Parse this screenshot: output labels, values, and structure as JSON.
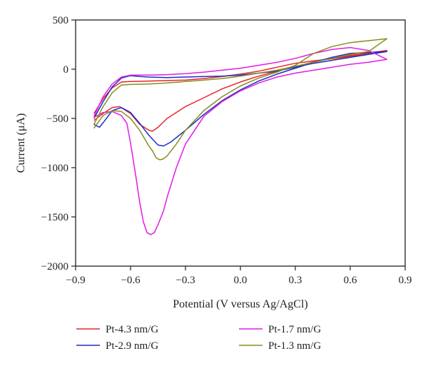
{
  "chart_data": {
    "type": "line",
    "title": "",
    "xlabel": "Potential (V versus Ag/AgCl)",
    "ylabel": "Current (μA)",
    "xlim": [
      -0.9,
      0.9
    ],
    "ylim": [
      -2000,
      500
    ],
    "xticks": [
      -0.9,
      -0.6,
      -0.3,
      0.0,
      0.3,
      0.6,
      0.9
    ],
    "xtick_labels": [
      "−0.9",
      "−0.6",
      "−0.3",
      "0.0",
      "0.3",
      "0.6",
      "0.9"
    ],
    "yticks": [
      500,
      0,
      -500,
      -1000,
      -1500,
      -2000
    ],
    "ytick_labels": [
      "500",
      "0",
      "−500",
      "−1000",
      "−1500",
      "−2000"
    ],
    "grid": false,
    "legend_position": "bottom",
    "series": [
      {
        "name": "Pt-4.3 nm/G",
        "color": "#e8262b",
        "x": [
          -0.8,
          -0.75,
          -0.7,
          -0.66,
          -0.6,
          -0.55,
          -0.5,
          -0.48,
          -0.45,
          -0.4,
          -0.3,
          -0.2,
          -0.1,
          0.0,
          0.1,
          0.2,
          0.3,
          0.4,
          0.5,
          0.6,
          0.7,
          0.8,
          0.7,
          0.6,
          0.5,
          0.4,
          0.3,
          0.2,
          0.1,
          0.0,
          -0.1,
          -0.2,
          -0.3,
          -0.4,
          -0.5,
          -0.6,
          -0.65,
          -0.7,
          -0.75,
          -0.8
        ],
        "y": [
          -520,
          -450,
          -390,
          -380,
          -450,
          -560,
          -620,
          -630,
          -590,
          -500,
          -380,
          -290,
          -200,
          -130,
          -70,
          -20,
          25,
          75,
          110,
          140,
          165,
          190,
          160,
          130,
          105,
          85,
          60,
          20,
          -20,
          -50,
          -75,
          -95,
          -110,
          -115,
          -120,
          -125,
          -130,
          -190,
          -300,
          -450
        ]
      },
      {
        "name": "Pt-2.9 nm/G",
        "color": "#1b2fc7",
        "x": [
          -0.8,
          -0.77,
          -0.74,
          -0.7,
          -0.65,
          -0.6,
          -0.55,
          -0.5,
          -0.45,
          -0.42,
          -0.38,
          -0.3,
          -0.2,
          -0.1,
          0.0,
          0.1,
          0.2,
          0.3,
          0.4,
          0.5,
          0.6,
          0.7,
          0.8,
          0.7,
          0.6,
          0.5,
          0.4,
          0.3,
          0.2,
          0.1,
          0.0,
          -0.1,
          -0.2,
          -0.3,
          -0.4,
          -0.5,
          -0.55,
          -0.6,
          -0.65,
          -0.7,
          -0.75,
          -0.8
        ],
        "y": [
          -560,
          -590,
          -520,
          -420,
          -390,
          -440,
          -550,
          -670,
          -770,
          -780,
          -740,
          -620,
          -460,
          -320,
          -210,
          -120,
          -50,
          10,
          70,
          120,
          160,
          170,
          180,
          150,
          120,
          90,
          60,
          20,
          -20,
          -40,
          -60,
          -70,
          -75,
          -80,
          -85,
          -80,
          -75,
          -65,
          -90,
          -180,
          -330,
          -500
        ]
      },
      {
        "name": "Pt-1.7 nm/G",
        "color": "#e31ce6",
        "x": [
          -0.8,
          -0.75,
          -0.7,
          -0.65,
          -0.62,
          -0.6,
          -0.57,
          -0.55,
          -0.53,
          -0.51,
          -0.49,
          -0.47,
          -0.45,
          -0.42,
          -0.4,
          -0.35,
          -0.3,
          -0.2,
          -0.1,
          0.0,
          0.1,
          0.2,
          0.3,
          0.4,
          0.5,
          0.6,
          0.7,
          0.8,
          0.7,
          0.6,
          0.5,
          0.4,
          0.3,
          0.2,
          0.1,
          0.0,
          -0.1,
          -0.2,
          -0.3,
          -0.4,
          -0.5,
          -0.6,
          -0.65,
          -0.7,
          -0.75,
          -0.8
        ],
        "y": [
          -490,
          -440,
          -430,
          -470,
          -550,
          -750,
          -1100,
          -1350,
          -1550,
          -1660,
          -1680,
          -1660,
          -1580,
          -1440,
          -1300,
          -1000,
          -760,
          -480,
          -330,
          -220,
          -140,
          -80,
          -40,
          -10,
          20,
          50,
          70,
          100,
          190,
          220,
          200,
          160,
          110,
          70,
          40,
          10,
          -10,
          -30,
          -45,
          -55,
          -60,
          -60,
          -80,
          -150,
          -280,
          -480
        ]
      },
      {
        "name": "Pt-1.3 nm/G",
        "color": "#8c8c21",
        "x": [
          -0.8,
          -0.75,
          -0.7,
          -0.65,
          -0.6,
          -0.55,
          -0.5,
          -0.48,
          -0.46,
          -0.44,
          -0.42,
          -0.4,
          -0.35,
          -0.3,
          -0.2,
          -0.1,
          0.0,
          0.1,
          0.2,
          0.3,
          0.35,
          0.4,
          0.5,
          0.6,
          0.7,
          0.8,
          0.7,
          0.6,
          0.5,
          0.4,
          0.3,
          0.2,
          0.1,
          0.0,
          -0.1,
          -0.2,
          -0.3,
          -0.4,
          -0.5,
          -0.6,
          -0.65,
          -0.7,
          -0.75,
          -0.8
        ],
        "y": [
          -600,
          -470,
          -420,
          -430,
          -500,
          -620,
          -780,
          -830,
          -900,
          -920,
          -910,
          -880,
          -760,
          -620,
          -420,
          -280,
          -170,
          -90,
          -30,
          40,
          100,
          160,
          230,
          270,
          290,
          310,
          180,
          150,
          110,
          70,
          30,
          -10,
          -40,
          -70,
          -95,
          -110,
          -125,
          -140,
          -150,
          -155,
          -160,
          -240,
          -380,
          -560
        ]
      }
    ]
  }
}
